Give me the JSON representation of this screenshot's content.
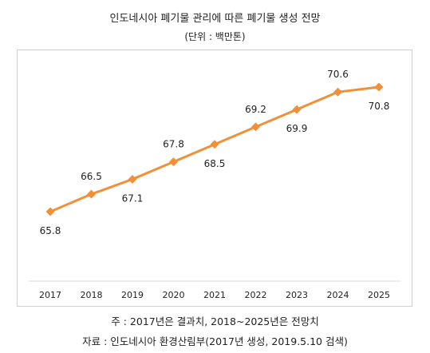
{
  "header": {
    "title": "인도네시아 폐기물 관리에 따른 폐기물 생성 전망",
    "unit": "(단위 : 백만톤)"
  },
  "notes": {
    "note": "주 : 2017년은 결과치, 2018~2025년은 전망치",
    "source": "자료 : 인도네시아 환경산림부(2017년 생성, 2019.5.10 검색)"
  },
  "chart_data": {
    "type": "line",
    "categories": [
      "2017",
      "2018",
      "2019",
      "2020",
      "2021",
      "2022",
      "2023",
      "2024",
      "2025"
    ],
    "series": [
      {
        "values": [
          65.8,
          66.5,
          67.1,
          67.8,
          68.5,
          69.2,
          69.9,
          70.6,
          70.8
        ],
        "labels": [
          "65.8",
          "66.5",
          "67.1",
          "67.8",
          "68.5",
          "69.2",
          "69.9",
          "70.6",
          "70.8"
        ],
        "color": "#f0913a"
      }
    ],
    "label_positions": [
      "below",
      "above",
      "below",
      "above",
      "below",
      "above",
      "below",
      "above",
      "below"
    ],
    "grid": false,
    "legend": "none"
  }
}
